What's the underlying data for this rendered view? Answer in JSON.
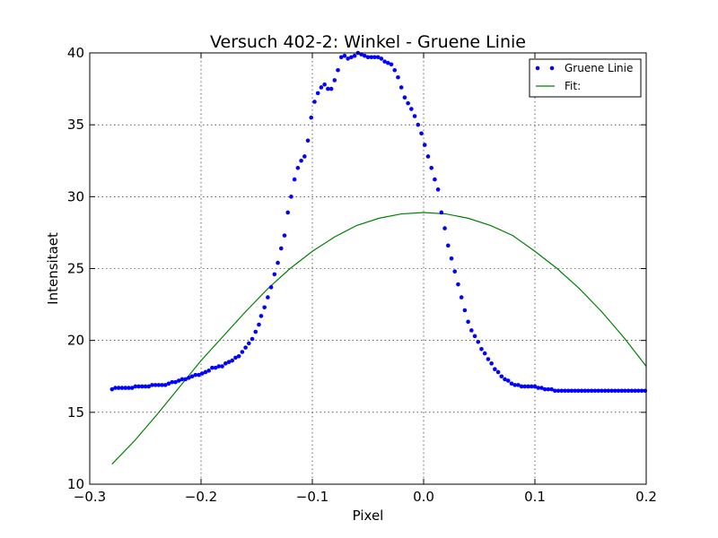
{
  "chart_data": {
    "type": "scatter",
    "title": "Versuch 402-2: Winkel - Gruene Linie",
    "xlabel": "Pixel",
    "ylabel": "Intensitaet",
    "xlim": [
      -0.3,
      0.2
    ],
    "ylim": [
      10,
      40
    ],
    "xticks": [
      -0.3,
      -0.2,
      -0.1,
      0.0,
      0.1,
      0.2
    ],
    "xtick_labels": [
      "−0.3",
      "−0.2",
      "−0.1",
      "0.0",
      "0.1",
      "0.2"
    ],
    "yticks": [
      10,
      15,
      20,
      25,
      30,
      35,
      40
    ],
    "ytick_labels": [
      "10",
      "15",
      "20",
      "25",
      "30",
      "35",
      "40"
    ],
    "grid": true,
    "legend_position": "top-right",
    "series": [
      {
        "name": "Gruene Linie",
        "kind": "scatter",
        "color": "#0000ff",
        "points": [
          [
            -0.28,
            16.6
          ],
          [
            -0.277,
            16.7
          ],
          [
            -0.274,
            16.7
          ],
          [
            -0.271,
            16.7
          ],
          [
            -0.268,
            16.7
          ],
          [
            -0.265,
            16.7
          ],
          [
            -0.262,
            16.7
          ],
          [
            -0.259,
            16.8
          ],
          [
            -0.256,
            16.8
          ],
          [
            -0.253,
            16.8
          ],
          [
            -0.25,
            16.8
          ],
          [
            -0.247,
            16.8
          ],
          [
            -0.244,
            16.9
          ],
          [
            -0.241,
            16.9
          ],
          [
            -0.238,
            16.9
          ],
          [
            -0.235,
            16.9
          ],
          [
            -0.232,
            16.9
          ],
          [
            -0.229,
            17.0
          ],
          [
            -0.226,
            17.1
          ],
          [
            -0.223,
            17.1
          ],
          [
            -0.22,
            17.2
          ],
          [
            -0.217,
            17.3
          ],
          [
            -0.214,
            17.3
          ],
          [
            -0.211,
            17.4
          ],
          [
            -0.208,
            17.5
          ],
          [
            -0.205,
            17.6
          ],
          [
            -0.202,
            17.6
          ],
          [
            -0.199,
            17.7
          ],
          [
            -0.196,
            17.8
          ],
          [
            -0.193,
            17.9
          ],
          [
            -0.19,
            18.1
          ],
          [
            -0.187,
            18.1
          ],
          [
            -0.184,
            18.2
          ],
          [
            -0.181,
            18.2
          ],
          [
            -0.178,
            18.4
          ],
          [
            -0.175,
            18.5
          ],
          [
            -0.172,
            18.6
          ],
          [
            -0.169,
            18.8
          ],
          [
            -0.166,
            18.9
          ],
          [
            -0.163,
            19.2
          ],
          [
            -0.16,
            19.5
          ],
          [
            -0.157,
            19.8
          ],
          [
            -0.154,
            20.1
          ],
          [
            -0.151,
            20.6
          ],
          [
            -0.148,
            21.1
          ],
          [
            -0.146,
            21.7
          ],
          [
            -0.143,
            22.3
          ],
          [
            -0.14,
            23.0
          ],
          [
            -0.137,
            23.7
          ],
          [
            -0.134,
            24.6
          ],
          [
            -0.131,
            25.4
          ],
          [
            -0.128,
            26.4
          ],
          [
            -0.125,
            27.3
          ],
          [
            -0.122,
            28.9
          ],
          [
            -0.119,
            30.0
          ],
          [
            -0.116,
            31.2
          ],
          [
            -0.113,
            32.0
          ],
          [
            -0.11,
            32.5
          ],
          [
            -0.107,
            32.8
          ],
          [
            -0.104,
            33.9
          ],
          [
            -0.101,
            35.5
          ],
          [
            -0.098,
            36.6
          ],
          [
            -0.095,
            37.2
          ],
          [
            -0.092,
            37.6
          ],
          [
            -0.089,
            37.8
          ],
          [
            -0.086,
            37.5
          ],
          [
            -0.083,
            37.5
          ],
          [
            -0.08,
            38.1
          ],
          [
            -0.077,
            38.8
          ],
          [
            -0.074,
            39.7
          ],
          [
            -0.071,
            39.8
          ],
          [
            -0.068,
            39.6
          ],
          [
            -0.065,
            39.7
          ],
          [
            -0.062,
            39.8
          ],
          [
            -0.059,
            40.0
          ],
          [
            -0.056,
            39.9
          ],
          [
            -0.053,
            39.8
          ],
          [
            -0.05,
            39.7
          ],
          [
            -0.047,
            39.7
          ],
          [
            -0.044,
            39.7
          ],
          [
            -0.041,
            39.7
          ],
          [
            -0.038,
            39.6
          ],
          [
            -0.035,
            39.4
          ],
          [
            -0.032,
            39.3
          ],
          [
            -0.029,
            39.2
          ],
          [
            -0.026,
            38.8
          ],
          [
            -0.023,
            38.3
          ],
          [
            -0.02,
            37.6
          ],
          [
            -0.017,
            36.9
          ],
          [
            -0.014,
            36.5
          ],
          [
            -0.011,
            36.1
          ],
          [
            -0.008,
            35.6
          ],
          [
            -0.005,
            35.0
          ],
          [
            -0.002,
            34.4
          ],
          [
            0.001,
            33.6
          ],
          [
            0.004,
            32.8
          ],
          [
            0.007,
            32.0
          ],
          [
            0.01,
            31.2
          ],
          [
            0.013,
            30.5
          ],
          [
            0.016,
            28.9
          ],
          [
            0.019,
            27.8
          ],
          [
            0.022,
            26.6
          ],
          [
            0.025,
            25.7
          ],
          [
            0.028,
            24.8
          ],
          [
            0.031,
            23.9
          ],
          [
            0.034,
            23.0
          ],
          [
            0.037,
            22.1
          ],
          [
            0.04,
            21.3
          ],
          [
            0.043,
            20.7
          ],
          [
            0.046,
            20.3
          ],
          [
            0.049,
            19.9
          ],
          [
            0.052,
            19.4
          ],
          [
            0.055,
            19.1
          ],
          [
            0.058,
            18.7
          ],
          [
            0.061,
            18.4
          ],
          [
            0.064,
            18.0
          ],
          [
            0.067,
            17.8
          ],
          [
            0.07,
            17.5
          ],
          [
            0.073,
            17.3
          ],
          [
            0.076,
            17.2
          ],
          [
            0.079,
            17.0
          ],
          [
            0.082,
            16.9
          ],
          [
            0.085,
            16.9
          ],
          [
            0.088,
            16.8
          ],
          [
            0.091,
            16.8
          ],
          [
            0.094,
            16.8
          ],
          [
            0.097,
            16.8
          ],
          [
            0.1,
            16.8
          ],
          [
            0.103,
            16.7
          ],
          [
            0.106,
            16.7
          ],
          [
            0.109,
            16.6
          ],
          [
            0.112,
            16.6
          ],
          [
            0.115,
            16.6
          ],
          [
            0.118,
            16.5
          ],
          [
            0.121,
            16.5
          ],
          [
            0.124,
            16.5
          ],
          [
            0.127,
            16.5
          ],
          [
            0.13,
            16.5
          ],
          [
            0.133,
            16.5
          ],
          [
            0.136,
            16.5
          ],
          [
            0.139,
            16.5
          ],
          [
            0.142,
            16.5
          ],
          [
            0.145,
            16.5
          ],
          [
            0.148,
            16.5
          ],
          [
            0.151,
            16.5
          ],
          [
            0.154,
            16.5
          ],
          [
            0.157,
            16.5
          ],
          [
            0.16,
            16.5
          ],
          [
            0.163,
            16.5
          ],
          [
            0.166,
            16.5
          ],
          [
            0.169,
            16.5
          ],
          [
            0.172,
            16.5
          ],
          [
            0.175,
            16.5
          ],
          [
            0.178,
            16.5
          ],
          [
            0.181,
            16.5
          ],
          [
            0.184,
            16.5
          ],
          [
            0.187,
            16.5
          ],
          [
            0.19,
            16.5
          ],
          [
            0.193,
            16.5
          ],
          [
            0.196,
            16.5
          ],
          [
            0.199,
            16.5
          ]
        ]
      },
      {
        "name": "Fit:",
        "kind": "line",
        "color": "#008000",
        "points": [
          [
            -0.28,
            11.4
          ],
          [
            -0.26,
            13.0
          ],
          [
            -0.24,
            14.8
          ],
          [
            -0.22,
            16.7
          ],
          [
            -0.2,
            18.6
          ],
          [
            -0.18,
            20.3
          ],
          [
            -0.16,
            22.0
          ],
          [
            -0.14,
            23.6
          ],
          [
            -0.12,
            25.0
          ],
          [
            -0.1,
            26.2
          ],
          [
            -0.08,
            27.2
          ],
          [
            -0.06,
            28.0
          ],
          [
            -0.04,
            28.5
          ],
          [
            -0.02,
            28.8
          ],
          [
            0.0,
            28.9
          ],
          [
            0.02,
            28.8
          ],
          [
            0.04,
            28.5
          ],
          [
            0.06,
            28.0
          ],
          [
            0.08,
            27.3
          ],
          [
            0.1,
            26.2
          ],
          [
            0.12,
            25.0
          ],
          [
            0.14,
            23.6
          ],
          [
            0.16,
            22.0
          ],
          [
            0.18,
            20.2
          ],
          [
            0.2,
            18.2
          ]
        ]
      }
    ]
  }
}
